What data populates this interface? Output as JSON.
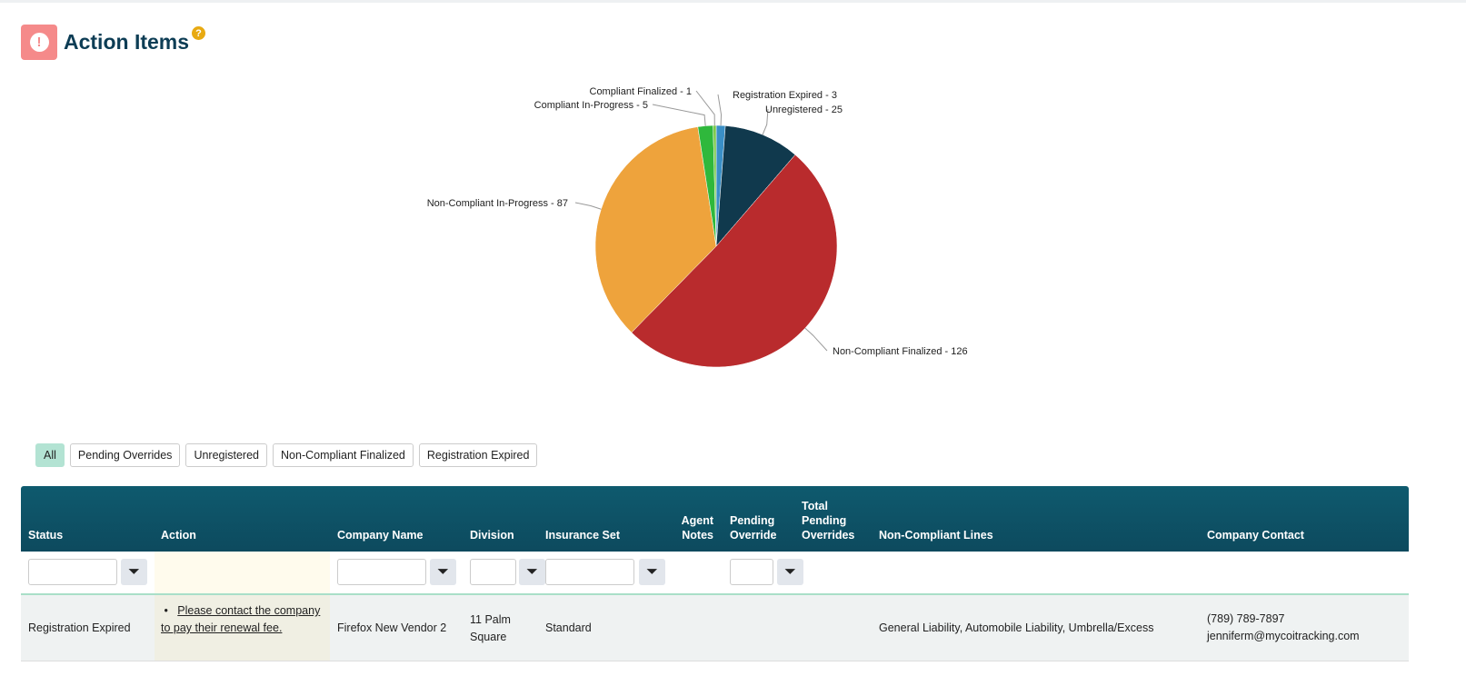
{
  "header": {
    "title": "Action Items",
    "alert_icon": "exclamation-circle-icon",
    "help_icon": "question-circle-icon"
  },
  "chart_data": {
    "type": "pie",
    "start": "top",
    "direction": "clockwise",
    "slices": [
      {
        "label": "Registration Expired - 3",
        "name": "Registration Expired",
        "value": 3,
        "color": "#3a8fc6"
      },
      {
        "label": "Unregistered - 25",
        "name": "Unregistered",
        "value": 25,
        "color": "#10394d"
      },
      {
        "label": "Non-Compliant Finalized - 126",
        "name": "Non-Compliant Finalized",
        "value": 126,
        "color": "#b92b2d"
      },
      {
        "label": "Non-Compliant In-Progress - 87",
        "name": "Non-Compliant In-Progress",
        "value": 87,
        "color": "#eea33c"
      },
      {
        "label": "Compliant In-Progress - 5",
        "name": "Compliant In-Progress",
        "value": 5,
        "color": "#2fb83c"
      },
      {
        "label": "Compliant Finalized - 1",
        "name": "Compliant Finalized",
        "value": 1,
        "color": "#7cc84a"
      }
    ]
  },
  "filters": [
    "All",
    "Pending Overrides",
    "Unregistered",
    "Non-Compliant Finalized",
    "Registration Expired"
  ],
  "table": {
    "headers": [
      "Status",
      "Action",
      "Company Name",
      "Division",
      "Insurance Set",
      "Agent Notes",
      "Pending Override",
      "Total Pending Overrides",
      "Non-Compliant Lines",
      "Company Contact"
    ],
    "rows": [
      {
        "status": "Registration Expired",
        "action": "Please contact the company to pay their renewal fee.",
        "company": "Firefox New Vendor 2",
        "division": "11 Palm Square",
        "insurance_set": "Standard",
        "agent_notes": "",
        "pending_override": "",
        "total_pending": "",
        "lines": "General Liability, Automobile Liability, Umbrella/Excess",
        "phone": "(789) 789-7897",
        "email": "jenniferm@mycoitracking.com"
      }
    ]
  }
}
